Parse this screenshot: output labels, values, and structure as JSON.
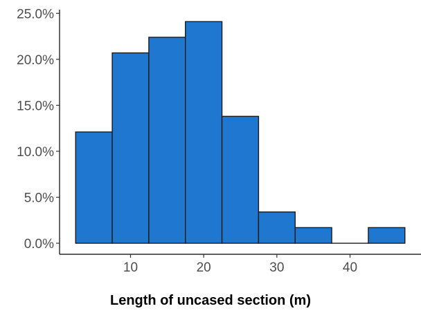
{
  "chart_data": {
    "type": "bar",
    "title": "",
    "xlabel": "Length of uncased section (m)",
    "ylabel": "",
    "bin_width": 5,
    "bins": [
      {
        "x0": 2.5,
        "x1": 7.5,
        "value": 12.1
      },
      {
        "x0": 7.5,
        "x1": 12.5,
        "value": 20.7
      },
      {
        "x0": 12.5,
        "x1": 17.5,
        "value": 22.4
      },
      {
        "x0": 17.5,
        "x1": 22.5,
        "value": 24.1
      },
      {
        "x0": 22.5,
        "x1": 27.5,
        "value": 13.8
      },
      {
        "x0": 27.5,
        "x1": 32.5,
        "value": 3.4
      },
      {
        "x0": 32.5,
        "x1": 37.5,
        "value": 1.7
      },
      {
        "x0": 37.5,
        "x1": 42.5,
        "value": 0.0
      },
      {
        "x0": 42.5,
        "x1": 47.5,
        "value": 1.7
      }
    ],
    "xlim": [
      0.3,
      49.7
    ],
    "ylim": [
      -1.2,
      25.4
    ],
    "x_ticks": [
      {
        "value": 10,
        "label": "10"
      },
      {
        "value": 20,
        "label": "20"
      },
      {
        "value": 30,
        "label": "30"
      },
      {
        "value": 40,
        "label": "40"
      }
    ],
    "y_ticks": [
      {
        "value": 0,
        "label": "0.0%"
      },
      {
        "value": 5,
        "label": "5.0%"
      },
      {
        "value": 10,
        "label": "10.0%"
      },
      {
        "value": 15,
        "label": "15.0%"
      },
      {
        "value": 20,
        "label": "20.0%"
      },
      {
        "value": 25,
        "label": "25.0%"
      }
    ],
    "grid": false,
    "legend": "none",
    "colors": {
      "bar_fill": "#1f77d0",
      "bar_outline": "#1a1a1a"
    }
  }
}
